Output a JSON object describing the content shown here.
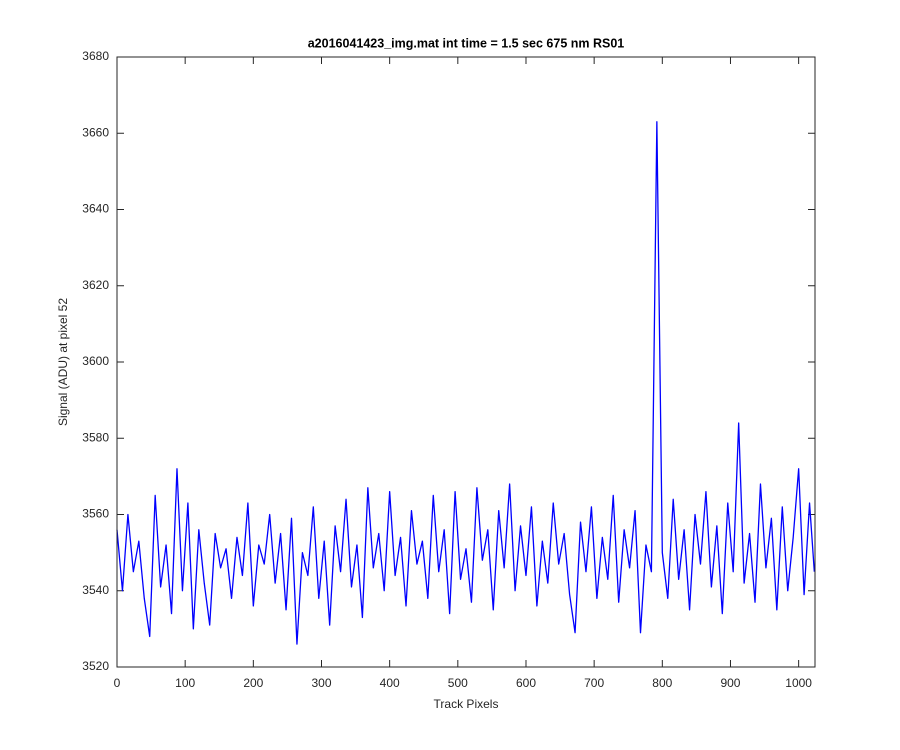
{
  "chart_data": {
    "type": "line",
    "title": "a2016041423_img.mat int time = 1.5 sec  675 nm RS01",
    "xlabel": "Track Pixels",
    "ylabel": "Signal (ADU) at pixel 52",
    "color": "#0000ff",
    "x": [
      0,
      8,
      16,
      24,
      32,
      40,
      48,
      56,
      64,
      72,
      80,
      88,
      96,
      104,
      112,
      120,
      128,
      136,
      144,
      152,
      160,
      168,
      176,
      184,
      192,
      200,
      208,
      216,
      224,
      232,
      240,
      248,
      256,
      264,
      272,
      280,
      288,
      296,
      304,
      312,
      320,
      328,
      336,
      344,
      352,
      360,
      368,
      376,
      384,
      392,
      400,
      408,
      416,
      424,
      432,
      440,
      448,
      456,
      464,
      472,
      480,
      488,
      496,
      504,
      512,
      520,
      528,
      536,
      544,
      552,
      560,
      568,
      576,
      584,
      592,
      600,
      608,
      616,
      624,
      632,
      640,
      648,
      656,
      664,
      672,
      680,
      688,
      696,
      704,
      712,
      720,
      728,
      736,
      744,
      752,
      760,
      768,
      776,
      784,
      792,
      800,
      808,
      816,
      824,
      832,
      840,
      848,
      856,
      864,
      872,
      880,
      888,
      896,
      904,
      912,
      920,
      928,
      936,
      944,
      952,
      960,
      968,
      976,
      984,
      992,
      1000,
      1008,
      1016,
      1023
    ],
    "values": [
      3556,
      3540,
      3560,
      3545,
      3553,
      3538,
      3528,
      3565,
      3541,
      3552,
      3534,
      3572,
      3540,
      3563,
      3530,
      3556,
      3542,
      3531,
      3555,
      3546,
      3551,
      3538,
      3554,
      3544,
      3563,
      3536,
      3552,
      3547,
      3560,
      3542,
      3555,
      3535,
      3559,
      3526,
      3550,
      3544,
      3562,
      3538,
      3553,
      3531,
      3557,
      3545,
      3564,
      3541,
      3552,
      3533,
      3567,
      3546,
      3555,
      3540,
      3566,
      3544,
      3554,
      3536,
      3561,
      3547,
      3553,
      3538,
      3565,
      3545,
      3556,
      3534,
      3566,
      3543,
      3551,
      3537,
      3567,
      3548,
      3556,
      3535,
      3561,
      3546,
      3568,
      3540,
      3557,
      3544,
      3562,
      3536,
      3553,
      3542,
      3563,
      3547,
      3555,
      3539,
      3529,
      3558,
      3545,
      3562,
      3538,
      3554,
      3543,
      3565,
      3537,
      3556,
      3546,
      3561,
      3529,
      3552,
      3545,
      3663,
      3550,
      3538,
      3564,
      3543,
      3556,
      3535,
      3560,
      3547,
      3566,
      3541,
      3557,
      3534,
      3563,
      3545,
      3584,
      3542,
      3555,
      3537,
      3568,
      3546,
      3559,
      3535,
      3562,
      3540,
      3554,
      3572,
      3539,
      3563,
      3545
    ],
    "xlim": [
      0,
      1024
    ],
    "ylim": [
      3520,
      3680
    ],
    "xticks": [
      0,
      100,
      200,
      300,
      400,
      500,
      600,
      700,
      800,
      900,
      1000
    ],
    "yticks": [
      3520,
      3540,
      3560,
      3580,
      3600,
      3620,
      3640,
      3660,
      3680
    ]
  }
}
